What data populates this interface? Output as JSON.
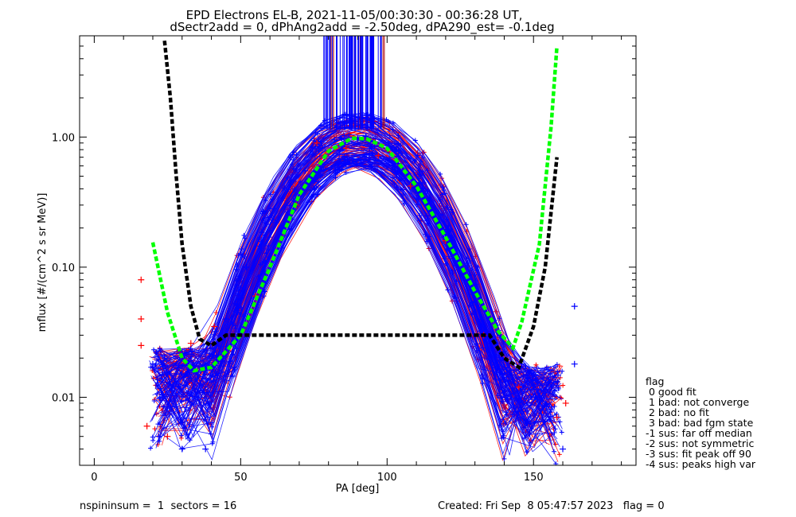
{
  "title_line1": "EPD Electrons EL-B, 2021-11-05/00:30:30 - 00:36:28 UT,",
  "title_line2": "dSectr2add = 0, dPhAng2add = -2.50deg, dPA290_est=  -0.1deg",
  "footer": {
    "left": "nspininsum =  1  sectors = 16",
    "right": "Created: Fri Sep  8 05:47:57 2023   flag = 0"
  },
  "legend": {
    "title": "flag",
    "items": [
      " 0 good fit",
      " 1 bad: not converge",
      " 2 bad: no fit",
      " 3 bad: bad fgm state",
      "-1 sus: far off median",
      "-2 sus: not symmetric",
      "-3 sus: fit peak off 90",
      "-4 sus: peaks high var"
    ]
  },
  "colors": {
    "red": "#ff0000",
    "blue": "#0000ff",
    "green": "#00ff00",
    "black": "#000000",
    "vline_red": "#aa0000"
  },
  "chart_data": {
    "type": "scatter",
    "xlabel": "PA [deg]",
    "ylabel": "mflux [#/(cm^2 s sr MeV)]",
    "xlim": [
      -5,
      185
    ],
    "ylim": [
      0.003,
      6
    ],
    "ylog": true,
    "xticks": [
      0,
      50,
      100,
      150
    ],
    "xtick_labels": [
      "0",
      "50",
      "100",
      "150"
    ],
    "yticks": [
      0.01,
      0.1,
      1
    ],
    "ytick_labels": [
      "0.01",
      "0.10",
      "1.00"
    ],
    "series": [
      {
        "color": "red",
        "values": [
          [
            16,
            0.08
          ],
          [
            16,
            0.04
          ],
          [
            16,
            0.025
          ],
          [
            18,
            0.006
          ],
          [
            25,
            0.005
          ],
          [
            33,
            0.026
          ],
          [
            41,
            0.035
          ],
          [
            55,
            0.06
          ],
          [
            69,
            0.3
          ],
          [
            76,
            0.9
          ],
          [
            86,
            0.82
          ],
          [
            97,
            0.72
          ],
          [
            108,
            0.42
          ],
          [
            120,
            0.16
          ],
          [
            133,
            0.03
          ],
          [
            145,
            0.012
          ],
          [
            158,
            0.007
          ],
          [
            161,
            0.009
          ]
        ]
      },
      {
        "color": "blue",
        "values": [
          [
            20,
            0.018
          ],
          [
            22,
            0.005
          ],
          [
            24,
            0.02
          ],
          [
            30,
            0.004
          ],
          [
            38,
            0.004
          ],
          [
            45,
            0.04
          ],
          [
            52,
            0.1
          ],
          [
            62,
            0.22
          ],
          [
            72,
            0.55
          ],
          [
            82,
            0.95
          ],
          [
            90,
            0.97
          ],
          [
            96,
            0.92
          ],
          [
            104,
            0.78
          ],
          [
            112,
            0.4
          ],
          [
            122,
            0.16
          ],
          [
            135,
            0.04
          ],
          [
            146,
            0.018
          ],
          [
            156,
            0.012
          ],
          [
            164,
            0.05
          ],
          [
            164,
            0.018
          ],
          [
            160,
            0.004
          ]
        ]
      },
      {
        "color": "green",
        "name": "fit",
        "values": [
          [
            20,
            0.155
          ],
          [
            25,
            0.045
          ],
          [
            30,
            0.02
          ],
          [
            34,
            0.016
          ],
          [
            40,
            0.017
          ],
          [
            50,
            0.03
          ],
          [
            60,
            0.1
          ],
          [
            70,
            0.36
          ],
          [
            80,
            0.78
          ],
          [
            88,
            0.98
          ],
          [
            93,
            0.97
          ],
          [
            100,
            0.82
          ],
          [
            110,
            0.42
          ],
          [
            120,
            0.17
          ],
          [
            130,
            0.065
          ],
          [
            138,
            0.032
          ],
          [
            143,
            0.024
          ],
          [
            146,
            0.038
          ],
          [
            152,
            0.15
          ],
          [
            156,
            1.2
          ],
          [
            158,
            5
          ]
        ]
      },
      {
        "color": "black",
        "name": "fit",
        "values": [
          [
            24,
            5.5
          ],
          [
            26,
            2.0
          ],
          [
            28,
            0.5
          ],
          [
            30,
            0.15
          ],
          [
            33,
            0.05
          ],
          [
            36,
            0.028
          ],
          [
            40,
            0.025
          ],
          [
            45,
            0.03
          ],
          [
            135,
            0.03
          ],
          [
            140,
            0.02
          ],
          [
            145,
            0.017
          ],
          [
            150,
            0.035
          ],
          [
            154,
            0.1
          ],
          [
            158,
            0.7
          ]
        ]
      }
    ]
  }
}
